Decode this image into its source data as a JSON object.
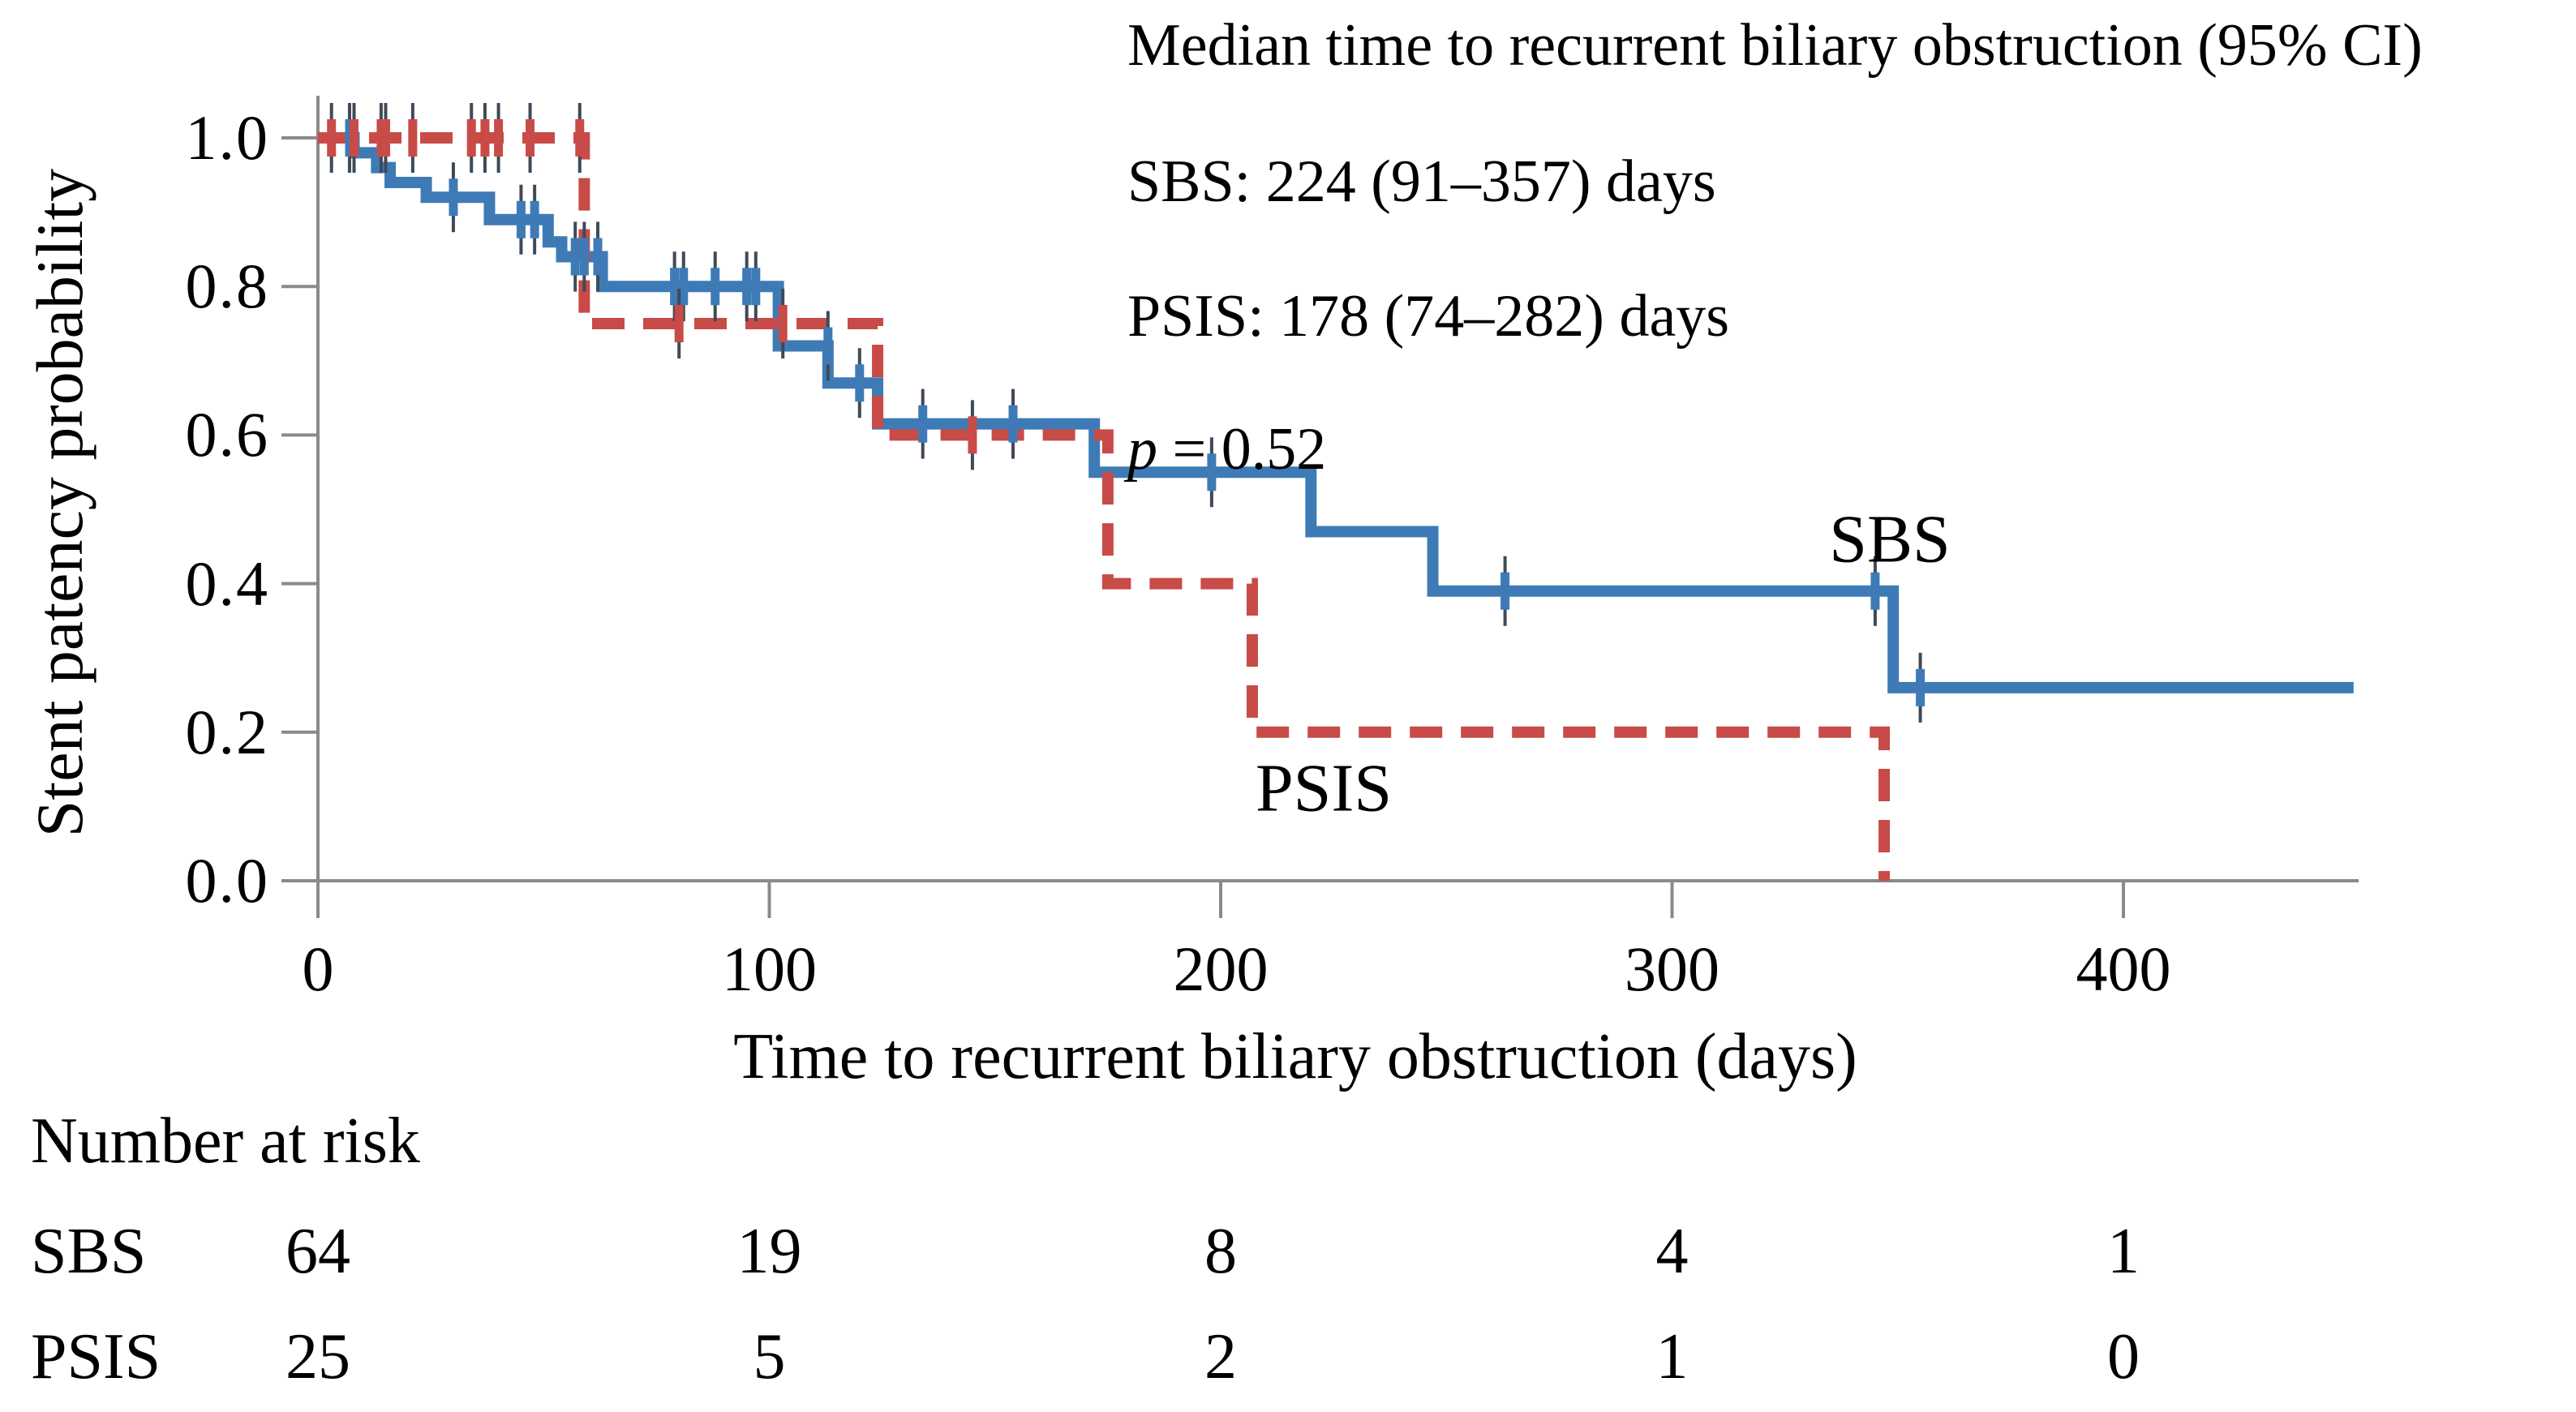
{
  "figure": {
    "y_axis_title": "Stent patency probability",
    "x_axis_title": "Time to recurrent biliary obstruction (days)",
    "annotation": {
      "title": "Median time to recurrent biliary obstruction (95% CI)",
      "sbs_line": "SBS: 224 (91–357) days",
      "psis_line": "PSIS: 178 (74–282) days",
      "p_italic": "p",
      "p_rest": " = 0.52"
    },
    "series_labels": {
      "sbs": "SBS",
      "psis": "PSIS"
    },
    "risk_table": {
      "header": "Number at risk",
      "rows": [
        {
          "label": "SBS",
          "values": [
            64,
            19,
            8,
            4,
            1
          ]
        },
        {
          "label": "PSIS",
          "values": [
            25,
            5,
            2,
            1,
            0
          ]
        }
      ]
    }
  },
  "chart_data": {
    "type": "line",
    "subtype": "kaplan-meier-step",
    "title": "",
    "xlabel": "Time to recurrent biliary obstruction (days)",
    "ylabel": "Stent patency probability",
    "xlim": [
      0,
      450
    ],
    "ylim": [
      0.0,
      1.0
    ],
    "x_ticks": [
      0,
      100,
      200,
      300,
      400
    ],
    "y_ticks": [
      "1.0",
      "0.8",
      "0.6",
      "0.4",
      "0.2",
      "0.0"
    ],
    "y_tick_values": [
      1.0,
      0.8,
      0.6,
      0.4,
      0.2,
      0.0
    ],
    "grid": false,
    "legend_position": "curve-adjacent-labels",
    "annotation_title": "Median time to recurrent biliary obstruction (95% CI)",
    "p_value": 0.52,
    "series": [
      {
        "name": "SBS",
        "style": "solid",
        "color": "#3E7BB6",
        "median_days": 224,
        "median_ci": [
          91,
          357
        ],
        "steps": [
          [
            0,
            1.0
          ],
          [
            8,
            0.98
          ],
          [
            13,
            0.96
          ],
          [
            16,
            0.94
          ],
          [
            24,
            0.92
          ],
          [
            38,
            0.89
          ],
          [
            51,
            0.86
          ],
          [
            54,
            0.84
          ],
          [
            63,
            0.8
          ],
          [
            102,
            0.72
          ],
          [
            113,
            0.67
          ],
          [
            124,
            0.615
          ],
          [
            172,
            0.55
          ],
          [
            220,
            0.47
          ],
          [
            247,
            0.39
          ],
          [
            349,
            0.26
          ]
        ],
        "end_time": 451,
        "censors": [
          [
            7,
            1.0
          ],
          [
            30,
            0.92
          ],
          [
            45,
            0.89
          ],
          [
            48,
            0.89
          ],
          [
            57,
            0.84
          ],
          [
            59,
            0.84
          ],
          [
            62,
            0.84
          ],
          [
            79,
            0.8
          ],
          [
            81,
            0.8
          ],
          [
            88,
            0.8
          ],
          [
            95,
            0.8
          ],
          [
            97,
            0.8
          ],
          [
            113,
            0.72
          ],
          [
            120,
            0.67
          ],
          [
            134,
            0.615
          ],
          [
            154,
            0.615
          ],
          [
            198,
            0.55
          ],
          [
            263,
            0.39
          ],
          [
            345,
            0.39
          ],
          [
            355,
            0.26
          ]
        ]
      },
      {
        "name": "PSIS",
        "style": "dashed",
        "color": "#C84B47",
        "median_days": 178,
        "median_ci": [
          74,
          282
        ],
        "steps": [
          [
            0,
            1.0
          ],
          [
            59,
            0.75
          ],
          [
            124,
            0.6
          ],
          [
            175,
            0.4
          ],
          [
            207,
            0.2
          ],
          [
            347,
            0.0
          ]
        ],
        "end_time": 347,
        "censors": [
          [
            3,
            1.0
          ],
          [
            8,
            1.0
          ],
          [
            14,
            1.0
          ],
          [
            15,
            1.0
          ],
          [
            21,
            1.0
          ],
          [
            34,
            1.0
          ],
          [
            37,
            1.0
          ],
          [
            40,
            1.0
          ],
          [
            47,
            1.0
          ],
          [
            58,
            1.0
          ],
          [
            80,
            0.75
          ],
          [
            103,
            0.75
          ],
          [
            145,
            0.6
          ]
        ]
      }
    ],
    "number_at_risk": {
      "times": [
        0,
        100,
        200,
        300,
        400
      ],
      "SBS": [
        64,
        19,
        8,
        4,
        1
      ],
      "PSIS": [
        25,
        5,
        2,
        1,
        0
      ]
    }
  },
  "colors": {
    "axis": "#8A8A8A",
    "text": "#000000",
    "sbs": "#3E7BB6",
    "psis": "#C84B47",
    "censor_tick": "#3F4A58"
  }
}
